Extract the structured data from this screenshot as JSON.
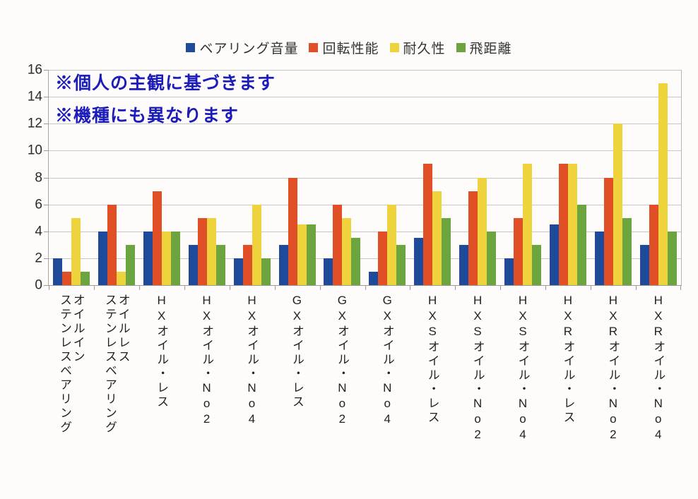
{
  "annotation": {
    "color": "#1c1cba",
    "lines": [
      "※個人の主観に基づきます",
      "※機種にも異なります"
    ]
  },
  "chart_data": {
    "type": "bar",
    "title": "",
    "xlabel": "",
    "ylabel": "",
    "ylim": [
      0,
      16
    ],
    "yticks": [
      0,
      2,
      4,
      6,
      8,
      10,
      12,
      14,
      16
    ],
    "grid": true,
    "legend_position": "top",
    "categories": [
      "オイルイン\nステンレスベアリング",
      "オイルレス\nステンレスベアリング",
      "HXオイル・レス",
      "HXオイル・No2",
      "HXオイル・No4",
      "GXオイル・レス",
      "GXオイル・No2",
      "GXオイル・No4",
      "HXSオイル・レス",
      "HXSオイル・No2",
      "HXSオイル・No4",
      "HXRオイル・レス",
      "HXRオイル・No2",
      "HXRオイル・No4"
    ],
    "series": [
      {
        "name": "ベアリング音量",
        "color": "#1d4b99",
        "values": [
          2,
          4,
          4,
          3,
          2,
          3,
          2,
          1,
          3.5,
          3,
          2,
          4.5,
          4,
          3
        ]
      },
      {
        "name": "回転性能",
        "color": "#e04f26",
        "values": [
          1,
          6,
          7,
          5,
          3,
          8,
          6,
          4,
          9,
          7,
          5,
          9,
          8,
          6
        ]
      },
      {
        "name": "耐久性",
        "color": "#eed33d",
        "values": [
          5,
          1,
          4,
          5,
          6,
          4.5,
          5,
          6,
          7,
          8,
          9,
          9,
          12,
          15
        ]
      },
      {
        "name": "飛距離",
        "color": "#6ca53f",
        "values": [
          1,
          3,
          4,
          3,
          2,
          4.5,
          3.5,
          3,
          5,
          4,
          3,
          6,
          5,
          4
        ]
      }
    ]
  }
}
